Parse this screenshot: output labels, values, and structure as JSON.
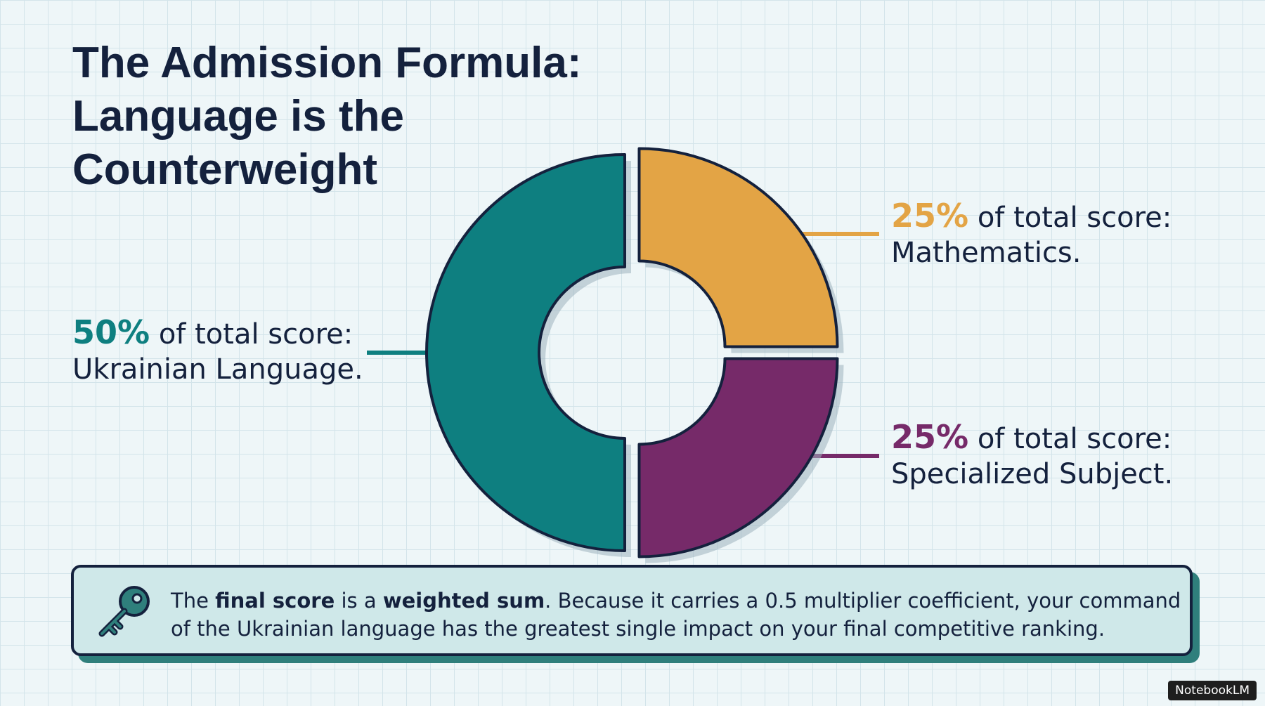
{
  "chart_data": {
    "type": "pie",
    "title": "The Admission Formula: Language is the Counterweight",
    "categories": [
      "Ukrainian Language.",
      "Mathematics.",
      "Specialized Subject."
    ],
    "values": [
      50,
      25,
      25
    ],
    "value_labels": [
      "50%",
      "25%",
      "25%"
    ],
    "descriptions": [
      "of total score:",
      "of total score:",
      "of total score:"
    ],
    "colors": [
      "#0e7f80",
      "#e3a445",
      "#762a69"
    ],
    "donut": true
  },
  "callout": {
    "parts": [
      {
        "text": "The ",
        "bold": false
      },
      {
        "text": "final score",
        "bold": true
      },
      {
        "text": " is a ",
        "bold": false
      },
      {
        "text": "weighted sum",
        "bold": true
      },
      {
        "text": ". Because it carries a 0.5 multiplier coefficient, your command of the Ukrainian language has the greatest single impact on your final competitive ranking.",
        "bold": false
      }
    ]
  },
  "footer": {
    "brand": "NotebookLM"
  }
}
